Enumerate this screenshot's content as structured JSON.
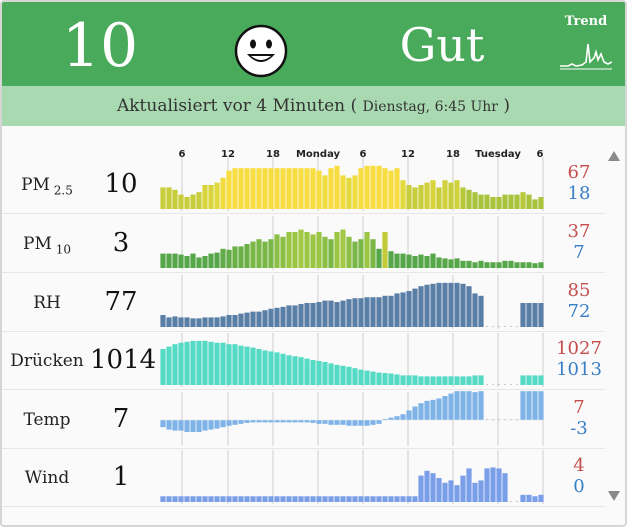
{
  "header": {
    "aqi_value": "10",
    "status": "Gut",
    "trend_label": "Trend",
    "colors": {
      "header_bg": "#4aaa5c",
      "subheader_bg": "#a8d9b0"
    }
  },
  "subheader": {
    "updated": "Aktualisiert vor 4 Minuten (",
    "timestamp": "Dienstag, 6:45 Uhr",
    "close": ")"
  },
  "time_axis": {
    "ticks": [
      "6",
      "12",
      "18",
      "Monday",
      "6",
      "12",
      "18",
      "Tuesday",
      "6"
    ]
  },
  "rows": [
    {
      "id": "pm25",
      "label": "PM",
      "sub": "2.5",
      "value": "10",
      "max": "67",
      "min": "18",
      "color": "#d2d433",
      "bars": [
        0.45,
        0.45,
        0.4,
        0.3,
        0.25,
        0.3,
        0.35,
        0.5,
        0.5,
        0.55,
        0.65,
        0.8,
        0.85,
        0.85,
        0.85,
        0.85,
        0.85,
        0.85,
        0.85,
        0.85,
        0.85,
        0.85,
        0.85,
        0.85,
        0.85,
        0.85,
        0.8,
        0.7,
        0.85,
        0.9,
        0.7,
        0.65,
        0.7,
        0.85,
        0.9,
        0.9,
        0.9,
        0.85,
        0.8,
        0.85,
        0.6,
        0.5,
        0.45,
        0.5,
        0.55,
        0.6,
        0.45,
        0.6,
        0.55,
        0.6,
        0.45,
        0.4,
        0.35,
        0.3,
        0.3,
        0.25,
        0.25,
        0.3,
        0.3,
        0.3,
        0.35,
        0.3,
        0.2,
        0.25
      ],
      "bar_colors": [
        "#c8cd3a",
        "#c8cd3a",
        "#c8cd3a",
        "#c8cd3a",
        "#c8cd3a",
        "#c8cd3a",
        "#c8cd3a",
        "#d9d43c",
        "#d9d43c",
        "#e2d93e",
        "#f1dc3f",
        "#f7dd40",
        "#f7dd40",
        "#f7dd40",
        "#f7dd40",
        "#f7dd40",
        "#f7dd40",
        "#f7dd40",
        "#f7dd40",
        "#f7dd40",
        "#f7dd40",
        "#f7dd40",
        "#f7dd40",
        "#f7dd40",
        "#f7dd40",
        "#f7dd40",
        "#f7dd40",
        "#f1dc3f",
        "#f7dd40",
        "#f7dd40",
        "#f1dc3f",
        "#e2d93e",
        "#f1dc3f",
        "#f7dd40",
        "#f7dd40",
        "#f7dd40",
        "#f7dd40",
        "#f7dd40",
        "#f7dd40",
        "#f7dd40",
        "#e2d93e",
        "#c8cd3a",
        "#c8cd3a",
        "#c8cd3a",
        "#d1d13c",
        "#d9d43c",
        "#c8cd3a",
        "#d1d13c",
        "#c8cd3a",
        "#d1d13c",
        "#b7c83a",
        "#a9c33c",
        "#a9c33c",
        "#a9c33c",
        "#a9c33c",
        "#a9c33c",
        "#a9c33c",
        "#a9c33c",
        "#a9c33c",
        "#a9c33c",
        "#b7c83a",
        "#a9c33c",
        "#a9c33c",
        "#a9c33c"
      ]
    },
    {
      "id": "pm10",
      "label": "PM",
      "sub": "10",
      "value": "3",
      "max": "37",
      "min": "7",
      "color": "#6aaa44",
      "bars": [
        0.3,
        0.3,
        0.3,
        0.28,
        0.25,
        0.3,
        0.22,
        0.25,
        0.3,
        0.32,
        0.4,
        0.38,
        0.45,
        0.45,
        0.5,
        0.55,
        0.6,
        0.55,
        0.6,
        0.7,
        0.65,
        0.75,
        0.75,
        0.8,
        0.75,
        0.7,
        0.75,
        0.65,
        0.6,
        0.75,
        0.8,
        0.65,
        0.55,
        0.6,
        0.75,
        0.6,
        0.4,
        0.75,
        0.35,
        0.3,
        0.3,
        0.28,
        0.25,
        0.28,
        0.25,
        0.3,
        0.22,
        0.2,
        0.18,
        0.2,
        0.15,
        0.15,
        0.12,
        0.15,
        0.12,
        0.12,
        0.12,
        0.15,
        0.15,
        0.12,
        0.12,
        0.12,
        0.1,
        0.12
      ],
      "bar_colors": [
        "#56a64a",
        "#56a64a",
        "#56a64a",
        "#56a64a",
        "#56a64a",
        "#56a64a",
        "#56a64a",
        "#56a64a",
        "#56a64a",
        "#56a64a",
        "#62ab48",
        "#62ab48",
        "#6bb046",
        "#6bb046",
        "#6bb046",
        "#7ab747",
        "#7ab747",
        "#7ab747",
        "#7ab747",
        "#8cbf45",
        "#8cbf45",
        "#9ac643",
        "#9ac643",
        "#a3c845",
        "#9ac643",
        "#9ac643",
        "#9ac643",
        "#8cbf45",
        "#7ab747",
        "#9ac643",
        "#a3c845",
        "#8cbf45",
        "#7ab747",
        "#7ab747",
        "#9ac643",
        "#7ab747",
        "#56a64a",
        "#c3cc38",
        "#56a64a",
        "#56a64a",
        "#56a64a",
        "#56a64a",
        "#56a64a",
        "#56a64a",
        "#56a64a",
        "#56a64a",
        "#56a64a",
        "#56a64a",
        "#56a64a",
        "#56a64a",
        "#56a64a",
        "#56a64a",
        "#56a64a",
        "#56a64a",
        "#56a64a",
        "#56a64a",
        "#56a64a",
        "#56a64a",
        "#56a64a",
        "#56a64a",
        "#56a64a",
        "#56a64a",
        "#56a64a",
        "#56a64a"
      ]
    },
    {
      "id": "rh",
      "label": "RH",
      "sub": "",
      "value": "77",
      "max": "85",
      "min": "72",
      "color": "#5a7fa6",
      "bars": [
        0.25,
        0.2,
        0.22,
        0.2,
        0.2,
        0.18,
        0.18,
        0.2,
        0.2,
        0.2,
        0.22,
        0.25,
        0.25,
        0.28,
        0.3,
        0.32,
        0.32,
        0.35,
        0.38,
        0.4,
        0.42,
        0.45,
        0.45,
        0.48,
        0.5,
        0.5,
        0.52,
        0.55,
        0.55,
        0.52,
        0.55,
        0.58,
        0.6,
        0.6,
        0.62,
        0.62,
        0.62,
        0.65,
        0.65,
        0.7,
        0.72,
        0.75,
        0.8,
        0.85,
        0.88,
        0.9,
        0.92,
        0.92,
        0.92,
        0.92,
        0.9,
        0.85,
        0.7,
        0.65,
        0,
        0,
        0,
        0,
        0,
        0,
        0.5,
        0.5,
        0.5,
        0.5
      ],
      "bar_colors": []
    },
    {
      "id": "druecken",
      "label": "Drücken",
      "sub": "",
      "value": "1014",
      "max": "1027",
      "min": "1013",
      "color": "#55dbc5",
      "bars": [
        0.75,
        0.8,
        0.85,
        0.88,
        0.9,
        0.92,
        0.92,
        0.92,
        0.9,
        0.88,
        0.88,
        0.85,
        0.85,
        0.82,
        0.8,
        0.78,
        0.75,
        0.72,
        0.7,
        0.68,
        0.65,
        0.62,
        0.6,
        0.58,
        0.55,
        0.52,
        0.5,
        0.48,
        0.45,
        0.42,
        0.4,
        0.38,
        0.35,
        0.32,
        0.3,
        0.28,
        0.26,
        0.25,
        0.24,
        0.22,
        0.2,
        0.2,
        0.2,
        0.18,
        0.18,
        0.18,
        0.18,
        0.18,
        0.18,
        0.18,
        0.18,
        0.18,
        0.2,
        0.2,
        0,
        0,
        0,
        0,
        0,
        0,
        0.2,
        0.2,
        0.2,
        0.2
      ],
      "bar_colors": []
    },
    {
      "id": "temp",
      "label": "Temp",
      "sub": "",
      "value": "7",
      "max": "7",
      "min": "-3",
      "color": "#7fb3e8",
      "bars": [
        -0.15,
        -0.2,
        -0.22,
        -0.22,
        -0.25,
        -0.25,
        -0.25,
        -0.22,
        -0.2,
        -0.18,
        -0.15,
        -0.12,
        -0.1,
        -0.08,
        -0.06,
        -0.05,
        -0.05,
        -0.05,
        -0.05,
        -0.05,
        -0.05,
        -0.05,
        -0.05,
        -0.05,
        -0.05,
        -0.06,
        -0.08,
        -0.08,
        -0.1,
        -0.1,
        -0.1,
        -0.12,
        -0.12,
        -0.12,
        -0.12,
        -0.1,
        -0.08,
        0.02,
        0.05,
        0.08,
        0.12,
        0.2,
        0.28,
        0.35,
        0.4,
        0.42,
        0.45,
        0.5,
        0.55,
        0.6,
        0.6,
        0.6,
        0.58,
        0.6,
        0,
        0,
        0,
        0,
        0,
        0,
        0.6,
        0.6,
        0.6,
        0.6
      ],
      "bar_colors": []
    },
    {
      "id": "wind",
      "label": "Wind",
      "sub": "",
      "value": "1",
      "max": "4",
      "min": "0",
      "color": "#7a9fe8",
      "bars": [
        0.12,
        0.12,
        0.12,
        0.12,
        0.12,
        0.12,
        0.12,
        0.12,
        0.12,
        0.12,
        0.12,
        0.12,
        0.12,
        0.12,
        0.12,
        0.12,
        0.12,
        0.12,
        0.12,
        0.12,
        0.12,
        0.12,
        0.12,
        0.12,
        0.12,
        0.12,
        0.12,
        0.12,
        0.12,
        0.12,
        0.12,
        0.12,
        0.12,
        0.12,
        0.12,
        0.12,
        0.12,
        0.12,
        0.12,
        0.12,
        0.12,
        0.12,
        0.12,
        0.55,
        0.65,
        0.6,
        0.5,
        0.4,
        0.45,
        0.35,
        0.55,
        0.7,
        0.4,
        0.45,
        0.7,
        0.72,
        0.7,
        0.6,
        0,
        0,
        0.15,
        0.15,
        0.12,
        0.15
      ],
      "bar_colors": []
    }
  ]
}
